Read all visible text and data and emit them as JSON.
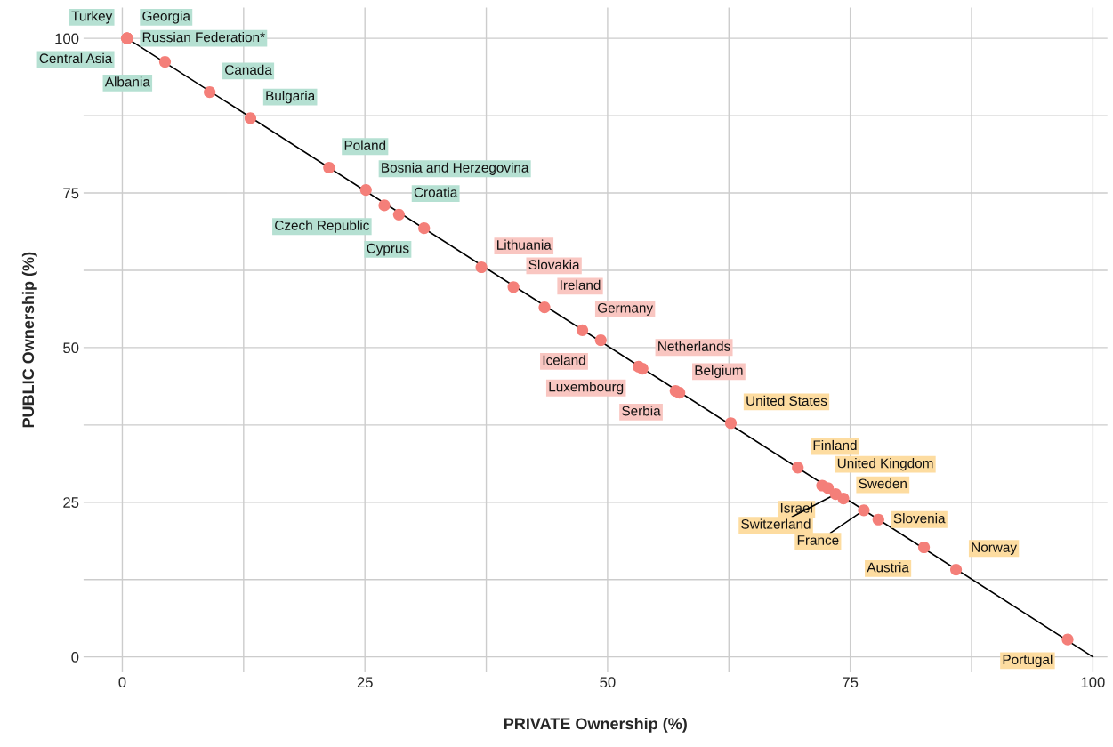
{
  "chart_data": {
    "type": "scatter",
    "xlabel": "PRIVATE Ownership (%)",
    "ylabel": "PUBLIC Ownership (%)",
    "xlim": [
      -4,
      101.5
    ],
    "ylim": [
      -2.5,
      105
    ],
    "xticks": [
      0,
      {
        "value": 12.5,
        "label": null
      },
      25,
      {
        "value": 37.5,
        "label": null
      },
      50,
      {
        "value": 62.5,
        "label": null
      },
      75,
      {
        "value": 87.5,
        "label": null
      },
      100
    ],
    "yticks": [
      0,
      {
        "value": 12.5,
        "label": null
      },
      25,
      {
        "value": 37.5,
        "label": null
      },
      50,
      {
        "value": 62.5,
        "label": null
      },
      75,
      {
        "value": 87.5,
        "label": null
      },
      100
    ],
    "grid": true,
    "marker": "circle",
    "series": [
      {
        "type": "line",
        "color": "#000000",
        "x": [
          0.5,
          100
        ],
        "values": [
          100,
          0
        ],
        "marker": "none"
      },
      {
        "type": "scatter",
        "color": "#f47f79",
        "x": [
          0.5,
          0.5,
          0.5,
          0.5,
          4.4,
          9.0,
          13.2,
          21.3,
          25.1,
          27.0,
          28.5,
          31.1
        ],
        "values": [
          100,
          100,
          100,
          100,
          96.2,
          91.3,
          87.1,
          79.1,
          75.5,
          73.0,
          71.5,
          69.3
        ],
        "value_labels": [
          "Georgia",
          "Central Asia",
          "Russian Federation*",
          "Turkey",
          "Albania",
          "Canada",
          "Bulgaria",
          "Poland",
          "Bosnia and Herzegovina",
          "Czech Republic",
          "Croatia",
          "Cyprus"
        ]
      },
      {
        "type": "scatter",
        "color": "#f47f79",
        "x": [
          37.0,
          40.3,
          43.5,
          47.4,
          49.3,
          53.6,
          53.2,
          57.4,
          57.0
        ],
        "values": [
          63.0,
          59.8,
          56.5,
          52.8,
          51.2,
          46.6,
          46.9,
          42.7,
          43.0
        ],
        "value_labels": [
          "Lithuania",
          "Slovakia",
          "Ireland",
          "Germany",
          "Iceland",
          "Netherlands",
          "Luxembourg",
          "Belgium",
          "Serbia"
        ]
      },
      {
        "type": "scatter",
        "color": "#f47f79",
        "x": [
          62.7,
          69.6,
          72.1,
          72.7,
          74.3,
          73.5,
          76.4,
          77.9,
          82.6,
          85.9,
          97.4
        ],
        "values": [
          37.8,
          30.6,
          27.7,
          27.3,
          25.6,
          26.3,
          23.7,
          22.2,
          17.7,
          14.1,
          2.8
        ],
        "value_labels": [
          "United States",
          "Finland",
          "United Kingdom",
          "Israel",
          "Sweden",
          "Switzerland",
          "France",
          "Slovenia",
          "Austria",
          "Norway",
          "Portugal"
        ]
      }
    ]
  }
}
